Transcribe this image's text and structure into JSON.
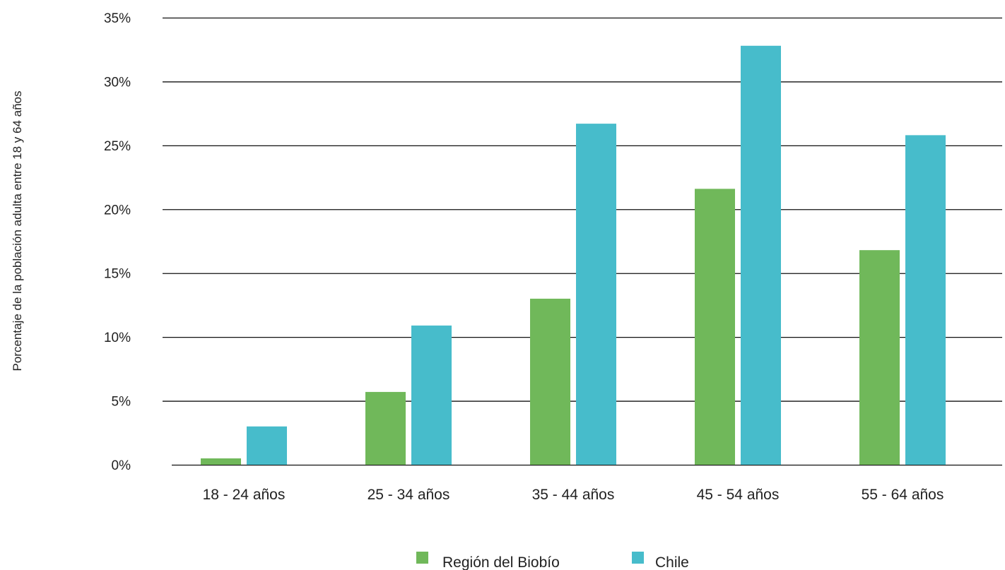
{
  "chart_data": {
    "type": "bar",
    "ylabel": "Porcentaje de la población adulta entre 18 y 64 años",
    "xlabel": "",
    "categories": [
      "18 - 24 años",
      "25 - 34 años",
      "35 - 44 años",
      "45 - 54 años",
      "55 - 64 años"
    ],
    "series": [
      {
        "name": "Región del Biobío",
        "color": "#70b85a",
        "values": [
          0.5,
          5.7,
          13.0,
          21.6,
          16.8
        ]
      },
      {
        "name": "Chile",
        "color": "#47bccb",
        "values": [
          3.0,
          10.9,
          26.7,
          32.8,
          25.8
        ]
      }
    ],
    "ylim": [
      0,
      35
    ],
    "yticks": [
      0,
      5,
      10,
      15,
      20,
      25,
      30,
      35
    ],
    "ytick_labels": [
      "0%",
      "5%",
      "10%",
      "15%",
      "20%",
      "25%",
      "30%",
      "35%"
    ],
    "grid": true,
    "legend_position": "bottom-center"
  }
}
